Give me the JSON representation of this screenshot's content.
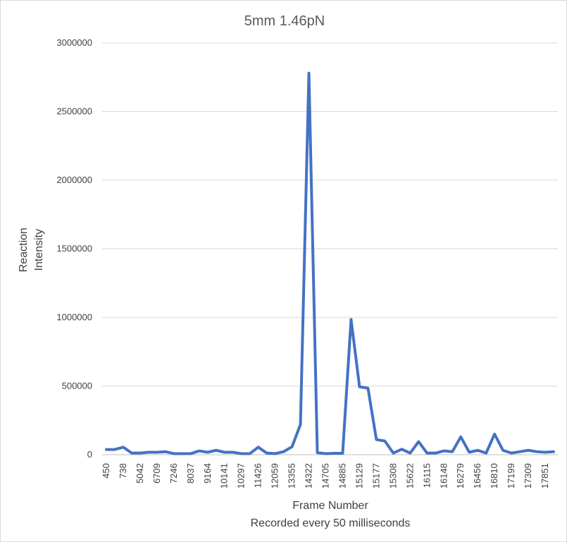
{
  "chart_data": {
    "type": "line",
    "title": "5mm 1.46pN",
    "xlabel_lines": [
      "Frame Number",
      "Recorded every 50 milliseconds"
    ],
    "ylabel_lines": [
      "Reaction",
      "Intensity"
    ],
    "ylim": [
      0,
      3000000
    ],
    "y_ticks": [
      "0",
      "500000",
      "1000000",
      "1500000",
      "2000000",
      "2500000",
      "3000000"
    ],
    "grid": true,
    "legend": "none",
    "line_color": "#4472c4",
    "x_tick_labels": [
      "450",
      "738",
      "5042",
      "6709",
      "7246",
      "8037",
      "9164",
      "10141",
      "10297",
      "11426",
      "12059",
      "13355",
      "14322",
      "14705",
      "14885",
      "15129",
      "15177",
      "15308",
      "15622",
      "16115",
      "16148",
      "16279",
      "16456",
      "16810",
      "17199",
      "17309",
      "17851"
    ],
    "series": [
      {
        "values": [
          38000,
          38000,
          55000,
          12000,
          12000,
          18000,
          18000,
          22000,
          8000,
          8000,
          8000,
          28000,
          18000,
          32000,
          18000,
          18000,
          8000,
          8000,
          55000,
          12000,
          8000,
          22000,
          58000,
          220000,
          2780000,
          15000,
          8000,
          10000,
          10000,
          985000,
          495000,
          485000,
          110000,
          100000,
          12000,
          40000,
          12000,
          95000,
          12000,
          12000,
          28000,
          22000,
          130000,
          18000,
          32000,
          12000,
          150000,
          32000,
          12000,
          22000,
          32000,
          22000,
          18000,
          22000
        ]
      }
    ]
  }
}
